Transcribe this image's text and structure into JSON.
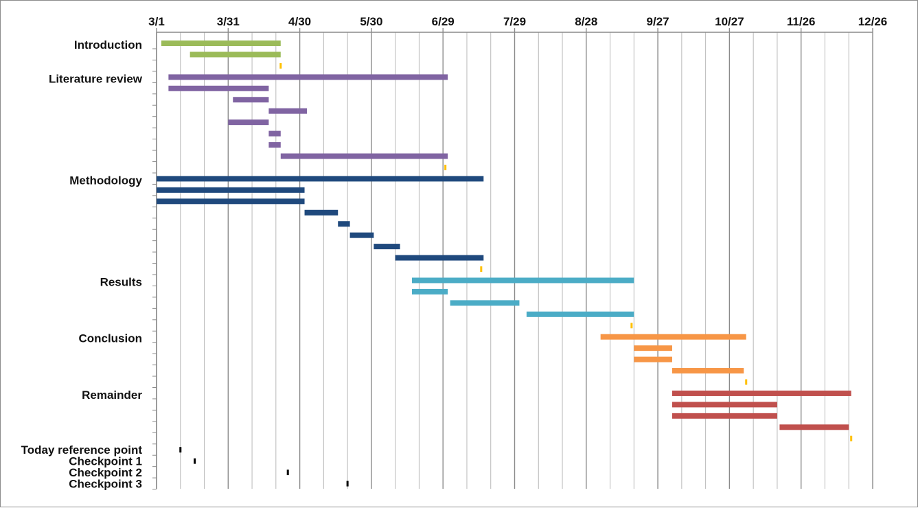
{
  "chart_data": {
    "type": "gantt",
    "x_axis": {
      "position": "top",
      "tick_labels": [
        "3/1",
        "3/31",
        "4/30",
        "5/30",
        "6/29",
        "7/29",
        "8/28",
        "9/27",
        "10/27",
        "11/26",
        "12/26"
      ],
      "range_days": [
        0,
        300
      ],
      "grid": true
    },
    "colors": {
      "introduction": "#9bbb59",
      "literature_review": "#8064a2",
      "methodology": "#1f497d",
      "results": "#4bacc6",
      "conclusion": "#f79646",
      "remainder": "#c0504d",
      "milestone": "#ffc000",
      "reference": "#000000"
    },
    "groups": [
      {
        "name": "Introduction",
        "color_key": "introduction",
        "rows": [
          {
            "kind": "task",
            "start": "3/3",
            "end": "4/22"
          },
          {
            "kind": "task",
            "start": "3/15",
            "end": "4/22"
          },
          {
            "kind": "milestone",
            "date": "4/22"
          }
        ]
      },
      {
        "name": "Literature review",
        "color_key": "literature_review",
        "rows": [
          {
            "kind": "task",
            "start": "3/6",
            "end": "7/1"
          },
          {
            "kind": "task",
            "start": "3/6",
            "end": "4/17"
          },
          {
            "kind": "task",
            "start": "4/2",
            "end": "4/17"
          },
          {
            "kind": "task",
            "start": "4/17",
            "end": "5/3"
          },
          {
            "kind": "task",
            "start": "3/31",
            "end": "4/17"
          },
          {
            "kind": "task",
            "start": "4/17",
            "end": "4/22"
          },
          {
            "kind": "task",
            "start": "4/17",
            "end": "4/22"
          },
          {
            "kind": "task",
            "start": "4/22",
            "end": "7/1"
          },
          {
            "kind": "milestone",
            "date": "6/30"
          }
        ]
      },
      {
        "name": "Methodology",
        "color_key": "methodology",
        "rows": [
          {
            "kind": "task",
            "start": "3/1",
            "end": "7/16"
          },
          {
            "kind": "task",
            "start": "3/1",
            "end": "5/2"
          },
          {
            "kind": "task",
            "start": "3/1",
            "end": "5/2"
          },
          {
            "kind": "task",
            "start": "5/2",
            "end": "5/16"
          },
          {
            "kind": "task",
            "start": "5/16",
            "end": "5/21"
          },
          {
            "kind": "task",
            "start": "5/21",
            "end": "5/31"
          },
          {
            "kind": "task",
            "start": "5/31",
            "end": "6/11"
          },
          {
            "kind": "task",
            "start": "6/9",
            "end": "7/16"
          },
          {
            "kind": "milestone",
            "date": "7/15"
          }
        ]
      },
      {
        "name": "Results",
        "color_key": "results",
        "rows": [
          {
            "kind": "task",
            "start": "6/16",
            "end": "9/17"
          },
          {
            "kind": "task",
            "start": "6/16",
            "end": "7/1"
          },
          {
            "kind": "task",
            "start": "7/2",
            "end": "7/31"
          },
          {
            "kind": "task",
            "start": "8/3",
            "end": "9/17"
          },
          {
            "kind": "milestone",
            "date": "9/16"
          }
        ]
      },
      {
        "name": "Conclusion",
        "color_key": "conclusion",
        "rows": [
          {
            "kind": "task",
            "start": "9/3",
            "end": "11/3"
          },
          {
            "kind": "task",
            "start": "9/17",
            "end": "10/3"
          },
          {
            "kind": "task",
            "start": "9/17",
            "end": "10/3"
          },
          {
            "kind": "task",
            "start": "10/3",
            "end": "11/2"
          },
          {
            "kind": "milestone",
            "date": "11/3"
          }
        ]
      },
      {
        "name": "Remainder",
        "color_key": "remainder",
        "rows": [
          {
            "kind": "task",
            "start": "10/3",
            "end": "12/17"
          },
          {
            "kind": "task",
            "start": "10/3",
            "end": "11/16"
          },
          {
            "kind": "task",
            "start": "10/3",
            "end": "11/16"
          },
          {
            "kind": "task",
            "start": "11/17",
            "end": "12/16"
          },
          {
            "kind": "milestone",
            "date": "12/17"
          }
        ]
      }
    ],
    "reference_points": [
      {
        "name": "Today reference point",
        "date": "3/11"
      },
      {
        "name": "Checkpoint 1",
        "date": "3/17"
      },
      {
        "name": "Checkpoint 2",
        "date": "4/25"
      },
      {
        "name": "Checkpoint 3",
        "date": "5/20"
      }
    ]
  }
}
